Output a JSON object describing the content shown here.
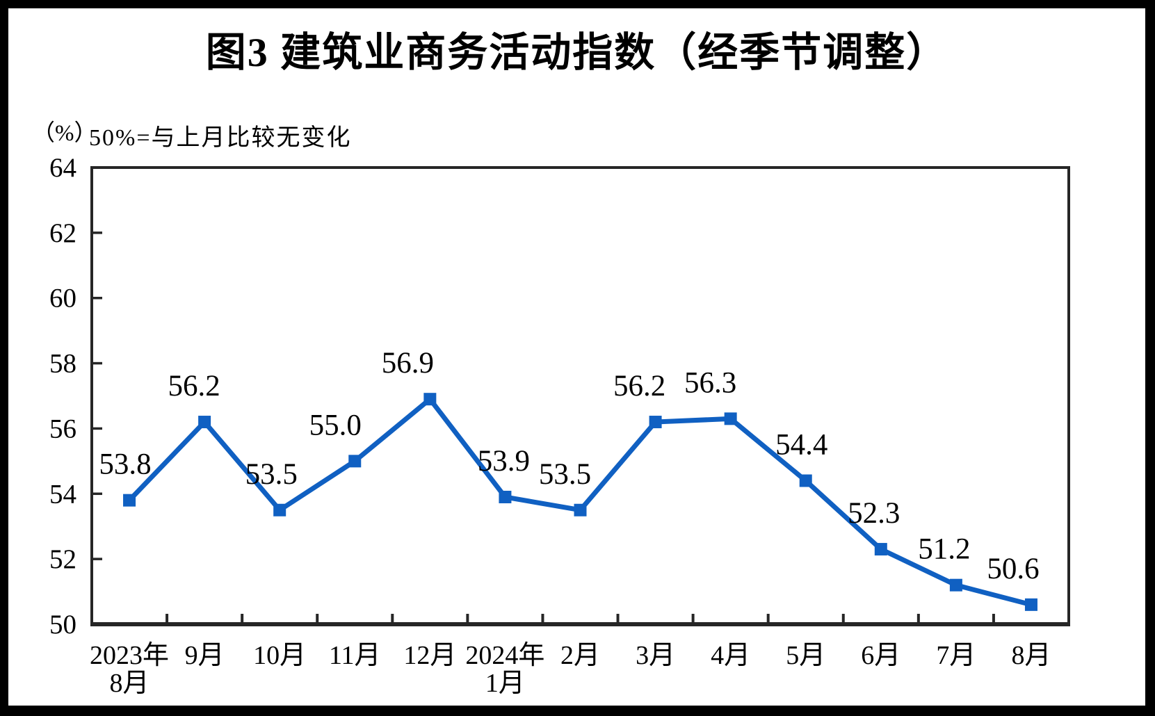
{
  "page": {
    "title": "图3  建筑业商务活动指数（经季节调整）",
    "unit_label": "（%）",
    "note": "50%=与上月比较无变化"
  },
  "chart_data": {
    "type": "line",
    "title": "图3 建筑业商务活动指数（经季节调整）",
    "subtitle": "50%=与上月比较无变化",
    "unit": "%",
    "categories": [
      [
        "2023年",
        "8月"
      ],
      [
        "9月"
      ],
      [
        "10月"
      ],
      [
        "11月"
      ],
      [
        "12月"
      ],
      [
        "2024年",
        "1月"
      ],
      [
        "2月"
      ],
      [
        "3月"
      ],
      [
        "4月"
      ],
      [
        "5月"
      ],
      [
        "6月"
      ],
      [
        "7月"
      ],
      [
        "8月"
      ]
    ],
    "series": [
      {
        "name": "建筑业商务活动指数",
        "values": [
          53.8,
          56.2,
          53.5,
          55.0,
          56.9,
          53.9,
          53.5,
          56.2,
          56.3,
          54.4,
          52.3,
          51.2,
          50.6
        ]
      }
    ],
    "data_labels": [
      "53.8",
      "56.2",
      "53.5",
      "55.0",
      "56.9",
      "53.9",
      "53.5",
      "56.2",
      "56.3",
      "54.4",
      "52.3",
      "51.2",
      "50.6"
    ],
    "ylim": [
      50,
      64
    ],
    "ytick_step": 2,
    "ytick_labels": [
      "50",
      "52",
      "54",
      "56",
      "58",
      "60",
      "62",
      "64"
    ],
    "grid": false,
    "legend": "none",
    "line_color": "#1060C2",
    "marker": "square",
    "label_color": "#000000",
    "axis_color": "#262626"
  }
}
